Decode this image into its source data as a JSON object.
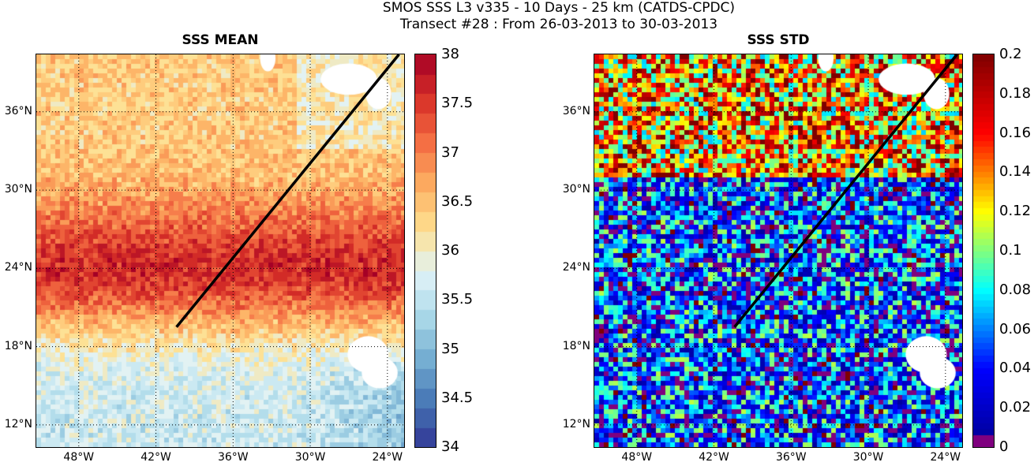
{
  "title_line1": "SMOS SSS L3 v335 - 10 Days - 25 km (CATDS-CPDC)",
  "title_line2": "Transect #28 : From 26-03-2013 to 30-03-2013",
  "colors": {
    "mean_colormap": [
      "#313695",
      "#4575b4",
      "#74add1",
      "#abd9e9",
      "#e0f3f8",
      "#fee090",
      "#fdae61",
      "#f46d43",
      "#d73027",
      "#a50026"
    ],
    "std_colormap": "jet",
    "transect_line": "#000000",
    "missing_data": "#ffffff"
  },
  "chart_data": [
    {
      "type": "heatmap",
      "title": "SSS MEAN",
      "x_ticks": [
        "48°W",
        "42°W",
        "36°W",
        "30°W",
        "24°W"
      ],
      "x_tick_values": [
        -48,
        -42,
        -36,
        -30,
        -24
      ],
      "y_ticks": [
        "36°N",
        "30°N",
        "24°N",
        "18°N",
        "12°N"
      ],
      "y_tick_values": [
        36,
        30,
        24,
        18,
        12
      ],
      "xlim": [
        -51.3,
        -22.7
      ],
      "ylim": [
        10.3,
        40.4
      ],
      "colorbar": {
        "range": [
          34,
          38
        ],
        "levels": 20,
        "tick_labels": [
          "38",
          "37.5",
          "37",
          "36.5",
          "36",
          "35.5",
          "35",
          "34.5",
          "34"
        ],
        "tick_values": [
          38,
          37.5,
          37,
          36.5,
          36,
          35.5,
          35,
          34.5,
          34
        ]
      },
      "field_model": {
        "max_band_center_lat": 24,
        "max_value": 37.6,
        "north_value": 36.4,
        "south_value": 35.6,
        "noise": 0.35
      },
      "transect": {
        "start": [
          -40.4,
          19.5
        ],
        "end": [
          -23.1,
          40.4
        ]
      },
      "grid": true
    },
    {
      "type": "heatmap",
      "title": "SSS STD",
      "x_ticks": [
        "48°W",
        "42°W",
        "36°W",
        "30°W",
        "24°W"
      ],
      "x_tick_values": [
        -48,
        -42,
        -36,
        -30,
        -24
      ],
      "y_ticks": [
        "36°N",
        "30°N",
        "24°N",
        "18°N",
        "12°N"
      ],
      "y_tick_values": [
        36,
        30,
        24,
        18,
        12
      ],
      "xlim": [
        -51.3,
        -22.7
      ],
      "ylim": [
        10.3,
        40.4
      ],
      "colorbar": {
        "range": [
          0,
          0.2
        ],
        "levels": 64,
        "tick_labels": [
          "0.2",
          "0.18",
          "0.16",
          "0.14",
          "0.12",
          "0.1",
          "0.08",
          "0.06",
          "0.04",
          "0.02",
          "0"
        ],
        "tick_values": [
          0.2,
          0.18,
          0.16,
          0.14,
          0.12,
          0.1,
          0.08,
          0.06,
          0.04,
          0.02,
          0
        ]
      },
      "field_model": {
        "typical": 0.05,
        "north_typical": 0.13,
        "noise": 0.06
      },
      "transect": {
        "start": [
          -40.4,
          19.5
        ],
        "end": [
          -23.1,
          40.4
        ]
      },
      "grid": true
    }
  ]
}
